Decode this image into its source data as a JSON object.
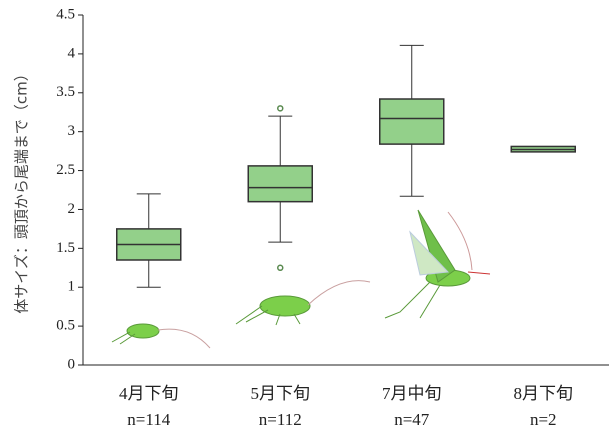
{
  "chart_data": {
    "type": "box",
    "y_label": "体サイズ：頭頂から尾端まで（cm）",
    "categories": [
      "4月下旬",
      "5月下旬",
      "7月中旬",
      "8月下旬"
    ],
    "n_labels": [
      "n=114",
      "n=112",
      "n=47",
      "n=2"
    ],
    "boxes": [
      {
        "min": 1.0,
        "q1": 1.35,
        "median": 1.55,
        "q3": 1.75,
        "max": 2.2,
        "outliers": []
      },
      {
        "min": 1.58,
        "q1": 2.1,
        "median": 2.28,
        "q3": 2.56,
        "max": 3.2,
        "outliers": [
          3.3,
          1.25
        ]
      },
      {
        "min": 2.17,
        "q1": 2.84,
        "median": 3.17,
        "q3": 3.42,
        "max": 4.11,
        "outliers": []
      },
      {
        "min": 2.74,
        "q1": 2.74,
        "median": 2.77,
        "q3": 2.81,
        "max": 2.81,
        "outliers": []
      }
    ],
    "color": "#93d08a",
    "ylim": [
      0,
      4.5
    ],
    "yticks": [
      0,
      0.5,
      1,
      1.5,
      2,
      2.5,
      3,
      3.5,
      4,
      4.5
    ]
  }
}
